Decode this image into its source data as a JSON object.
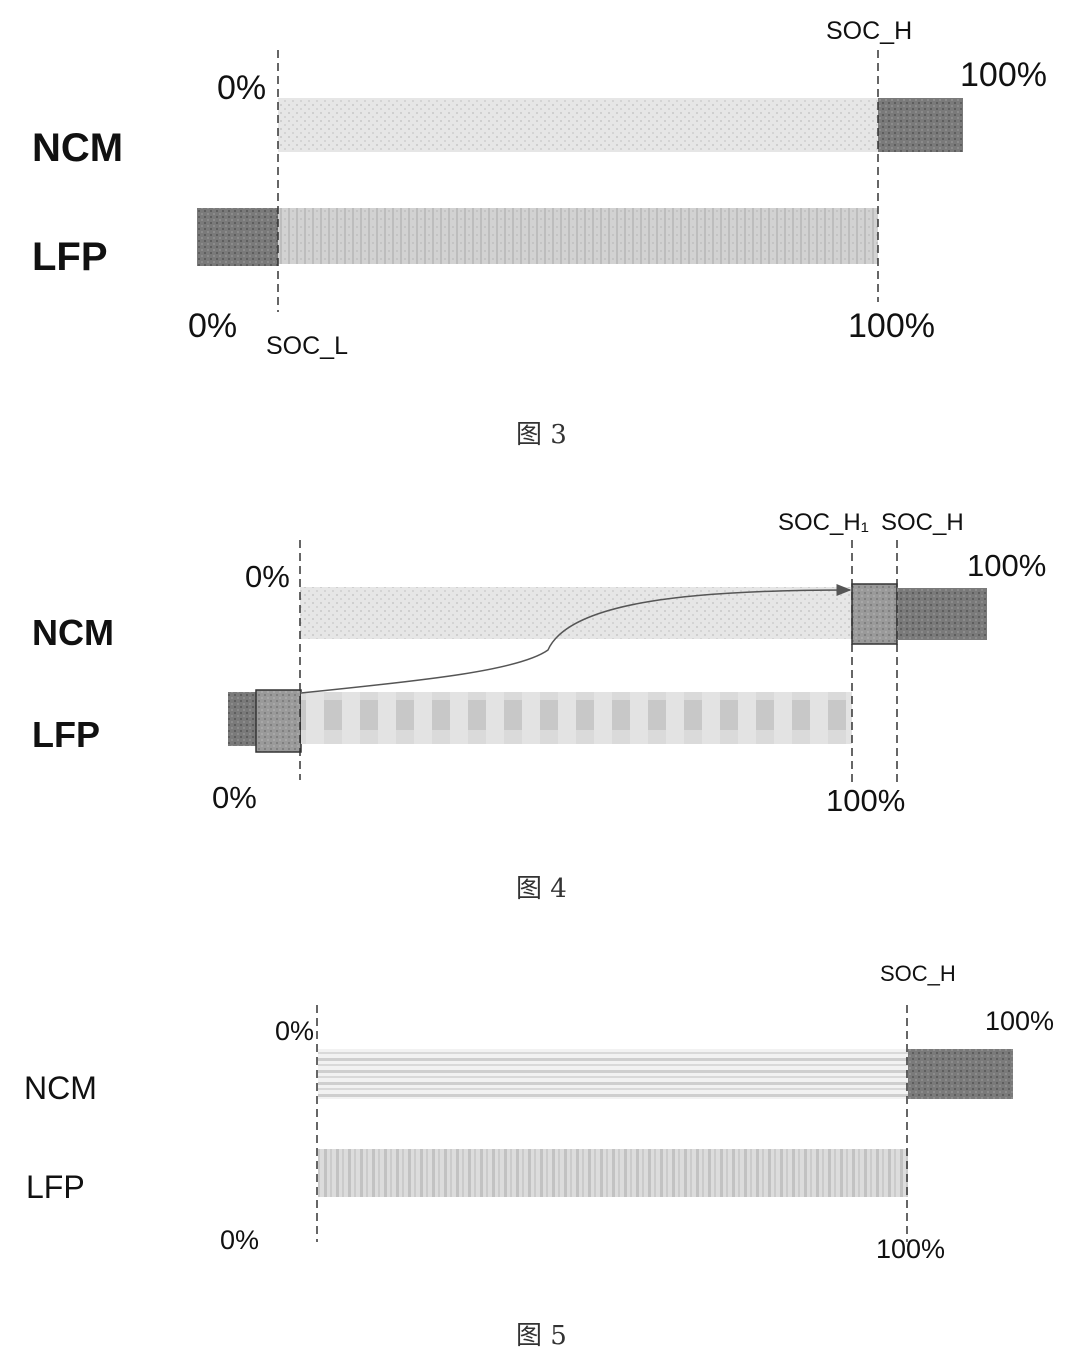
{
  "figure3": {
    "caption": "图 3",
    "ncm_label": "NCM",
    "lfp_label": "LFP",
    "ncm_start": "0%",
    "ncm_end": "100%",
    "lfp_start": "0%",
    "lfp_end": "100%",
    "marker_high": "SOC_H",
    "marker_low": "SOC_L"
  },
  "figure4": {
    "caption": "图 4",
    "ncm_label": "NCM",
    "lfp_label": "LFP",
    "ncm_start": "0%",
    "ncm_end": "100%",
    "lfp_start": "0%",
    "lfp_end": "100%",
    "marker_high1": "SOC_H₁",
    "marker_high": "SOC_H"
  },
  "figure5": {
    "caption": "图 5",
    "ncm_label": "NCM",
    "lfp_label": "LFP",
    "ncm_start": "0%",
    "ncm_end": "100%",
    "lfp_start": "0%",
    "lfp_end": "100%",
    "marker_high": "SOC_H"
  }
}
